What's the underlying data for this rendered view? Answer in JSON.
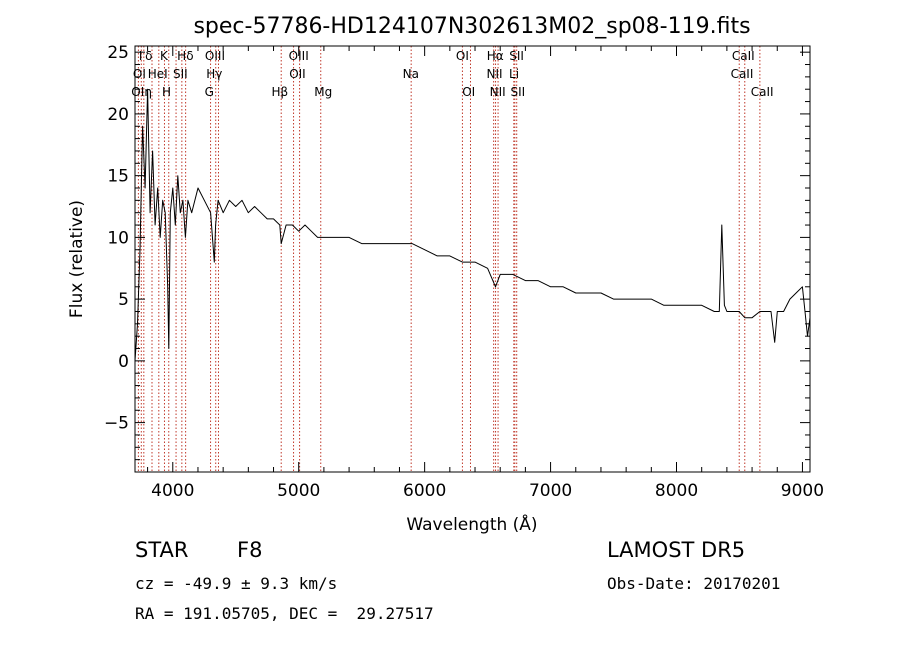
{
  "chart_data": {
    "type": "line",
    "title": "spec-57786-HD124107N302613M02_sp08-119.fits",
    "xlabel": "Wavelength (Å)",
    "ylabel": "Flux (relative)",
    "xlim": [
      3700,
      9060
    ],
    "ylim": [
      -9,
      25.5
    ],
    "xticks": [
      4000,
      5000,
      6000,
      7000,
      8000,
      9000
    ],
    "xtick_labels": [
      "4000",
      "5000",
      "6000",
      "7000",
      "8000",
      "9000"
    ],
    "yticks": [
      -5,
      0,
      5,
      10,
      15,
      20,
      25
    ],
    "ytick_labels": [
      "−5",
      "0",
      "5",
      "10",
      "15",
      "20",
      "25"
    ],
    "grid": false,
    "series": [
      {
        "x": [
          3700,
          3720,
          3740,
          3760,
          3780,
          3800,
          3820,
          3840,
          3860,
          3880,
          3900,
          3920,
          3940,
          3960,
          3968,
          3980,
          4000,
          4020,
          4040,
          4060,
          4080,
          4100,
          4120,
          4150,
          4200,
          4250,
          4300,
          4330,
          4340,
          4360,
          4400,
          4450,
          4500,
          4550,
          4600,
          4650,
          4700,
          4750,
          4800,
          4850,
          4861,
          4900,
          4950,
          5000,
          5050,
          5100,
          5150,
          5200,
          5300,
          5400,
          5500,
          5600,
          5700,
          5800,
          5900,
          6000,
          6100,
          6200,
          6300,
          6400,
          6500,
          6563,
          6600,
          6700,
          6800,
          6900,
          7000,
          7100,
          7200,
          7300,
          7400,
          7500,
          7600,
          7700,
          7800,
          7900,
          8000,
          8100,
          8200,
          8300,
          8340,
          8360,
          8380,
          8400,
          8450,
          8498,
          8542,
          8600,
          8662,
          8700,
          8750,
          8780,
          8800,
          8850,
          8900,
          8950,
          9000,
          9020,
          9040,
          9060
        ],
        "y": [
          0,
          3,
          9,
          19,
          14,
          22,
          12,
          17,
          11,
          14,
          10,
          13,
          12,
          6,
          1,
          12,
          14,
          11,
          15,
          12,
          13,
          10,
          13,
          12,
          14,
          13,
          12,
          8,
          11,
          13,
          12,
          13,
          12.5,
          13,
          12,
          12.5,
          12,
          11.5,
          11.5,
          11,
          9.5,
          11,
          11,
          10.5,
          11,
          10.5,
          10,
          10,
          10,
          10,
          9.5,
          9.5,
          9.5,
          9.5,
          9.5,
          9,
          8.5,
          8.5,
          8,
          8,
          7.5,
          6,
          7,
          7,
          6.5,
          6.5,
          6,
          6,
          5.5,
          5.5,
          5.5,
          5,
          5,
          5,
          5,
          4.5,
          4.5,
          4.5,
          4.5,
          4,
          4,
          11,
          4.5,
          4,
          4,
          4,
          3.5,
          3.5,
          4,
          4,
          4,
          1.5,
          4,
          4,
          5,
          5.5,
          6,
          4,
          2,
          3.5
        ]
      }
    ],
    "lines": [
      {
        "x": 3727,
        "label": "OII"
      },
      {
        "x": 3750,
        "label": "OII"
      },
      {
        "x": 3770,
        "label": "Hη"
      },
      {
        "x": 3835,
        "label": "H"
      },
      {
        "x": 3889,
        "label": "Hδ"
      },
      {
        "x": 3934,
        "label": "K"
      },
      {
        "x": 3968,
        "label": "H"
      },
      {
        "x": 4026,
        "label": "HeI"
      },
      {
        "x": 4072,
        "label": "SII"
      },
      {
        "x": 4102,
        "label": "Hδ"
      },
      {
        "x": 4300,
        "label": "G"
      },
      {
        "x": 4341,
        "label": "Hγ"
      },
      {
        "x": 4363,
        "label": "OIII"
      },
      {
        "x": 4861,
        "label": "Hβ"
      },
      {
        "x": 4959,
        "label": "OIII"
      },
      {
        "x": 5007,
        "label": "OIII"
      },
      {
        "x": 5175,
        "label": "Mg"
      },
      {
        "x": 5893,
        "label": "Na"
      },
      {
        "x": 6300,
        "label": "OI"
      },
      {
        "x": 6364,
        "label": "OI"
      },
      {
        "x": 6548,
        "label": "NII"
      },
      {
        "x": 6563,
        "label": "Hα"
      },
      {
        "x": 6583,
        "label": "NII"
      },
      {
        "x": 6708,
        "label": "Li"
      },
      {
        "x": 6716,
        "label": "SII"
      },
      {
        "x": 6731,
        "label": "SII"
      },
      {
        "x": 8498,
        "label": "CaII"
      },
      {
        "x": 8542,
        "label": "CaII"
      },
      {
        "x": 8662,
        "label": "CaII"
      }
    ],
    "line_label_rows": [
      [
        {
          "text": "I",
          "x": 3745
        },
        {
          "text": "δ",
          "x": 3810
        },
        {
          "text": "K",
          "x": 3930
        },
        {
          "text": "Hδ",
          "x": 4100
        },
        {
          "text": "OIII",
          "x": 4335
        },
        {
          "text": "OIII",
          "x": 5000
        },
        {
          "text": "OI",
          "x": 6300
        },
        {
          "text": "Hα",
          "x": 6560
        },
        {
          "text": "SII",
          "x": 6730
        },
        {
          "text": "CaII",
          "x": 8530
        }
      ],
      [
        {
          "text": "OI",
          "x": 3735
        },
        {
          "text": "HeI",
          "x": 3880
        },
        {
          "text": "SII",
          "x": 4060
        },
        {
          "text": "Hγ",
          "x": 4330
        },
        {
          "text": "OII",
          "x": 4990
        },
        {
          "text": "Na",
          "x": 5890
        },
        {
          "text": "NII",
          "x": 6555
        },
        {
          "text": "Li",
          "x": 6710
        },
        {
          "text": "CaII",
          "x": 8520
        }
      ],
      [
        {
          "text": "OI",
          "x": 3722
        },
        {
          "text": "η",
          "x": 3805
        },
        {
          "text": "H",
          "x": 3950
        },
        {
          "text": "G",
          "x": 4290
        },
        {
          "text": "Hβ",
          "x": 4850
        },
        {
          "text": "Mg",
          "x": 5195
        },
        {
          "text": "OI",
          "x": 6350
        },
        {
          "text": "NII",
          "x": 6580
        },
        {
          "text": "SII",
          "x": 6740
        },
        {
          "text": "CaII",
          "x": 8680
        }
      ]
    ]
  },
  "info": {
    "object_class": "STAR",
    "subclass": "F8",
    "survey": "LAMOST DR5",
    "cz": "cz = -49.9 ± 9.3 km/s",
    "obs_date": "Obs-Date: 20170201",
    "coords": "RA = 191.05705, DEC =  29.27517"
  },
  "colors": {
    "spectrum": "#000000",
    "line_markers": "#c0392b",
    "axes": "#000000",
    "background": "#ffffff"
  }
}
